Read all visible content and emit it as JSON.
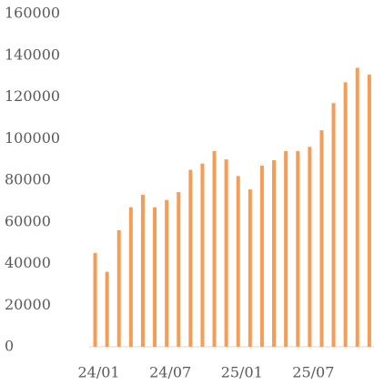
{
  "chart_data": {
    "type": "bar",
    "categories": [
      "24/01",
      null,
      null,
      null,
      null,
      null,
      "24/07",
      null,
      null,
      null,
      null,
      null,
      "25/01",
      null,
      null,
      null,
      null,
      null,
      "25/07",
      null,
      null,
      null,
      null,
      null
    ],
    "values": [
      45000,
      36000,
      56000,
      67000,
      73000,
      67000,
      70500,
      74300,
      85000,
      88000,
      94000,
      90000,
      82000,
      75600,
      87000,
      89600,
      94000,
      94000,
      96000,
      104000,
      117000,
      127000,
      134000,
      130700
    ],
    "color": "#f59d56",
    "ylim": [
      0,
      160000
    ],
    "yticks": [
      0,
      20000,
      40000,
      60000,
      80000,
      100000,
      120000,
      140000,
      160000
    ],
    "grid": false
  }
}
